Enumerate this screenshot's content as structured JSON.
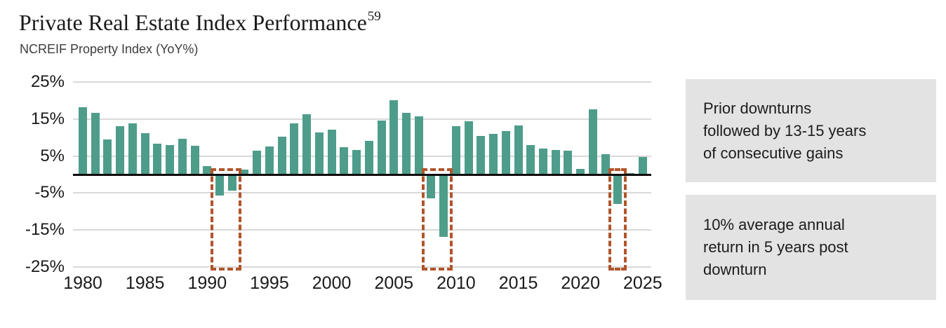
{
  "header": {
    "title": "Private Real Estate Index Performance",
    "footnote_marker": "59",
    "subtitle": "NCREIF Property Index (YoY%)"
  },
  "chart_data": {
    "type": "bar",
    "title": "Private Real Estate Index Performance",
    "subtitle": "NCREIF Property Index (YoY%)",
    "xlabel": "",
    "ylabel": "YoY %",
    "x": [
      1980,
      1981,
      1982,
      1983,
      1984,
      1985,
      1986,
      1987,
      1988,
      1989,
      1990,
      1991,
      1992,
      1993,
      1994,
      1995,
      1996,
      1997,
      1998,
      1999,
      2000,
      2001,
      2002,
      2003,
      2004,
      2005,
      2006,
      2007,
      2008,
      2009,
      2010,
      2011,
      2012,
      2013,
      2014,
      2015,
      2016,
      2017,
      2018,
      2019,
      2020,
      2021,
      2022,
      2023,
      2024,
      2025
    ],
    "values": [
      18.1,
      16.6,
      9.4,
      13.1,
      13.8,
      11.2,
      8.3,
      8.0,
      9.6,
      7.8,
      2.3,
      -5.6,
      -4.3,
      1.4,
      6.4,
      7.5,
      10.3,
      13.9,
      16.2,
      11.4,
      12.2,
      7.3,
      6.7,
      9.0,
      14.5,
      20.1,
      16.6,
      15.8,
      -6.5,
      -16.9,
      13.1,
      14.3,
      10.5,
      11.0,
      11.8,
      13.3,
      8.0,
      7.0,
      6.7,
      6.4,
      1.6,
      17.7,
      5.5,
      -7.9,
      0.4,
      4.7
    ],
    "ylim": [
      -25,
      25
    ],
    "yticks": [
      25,
      15,
      5,
      -5,
      -15,
      -25
    ],
    "ytick_labels": [
      "25%",
      "15%",
      "5%",
      "-5%",
      "-15%",
      "-25%"
    ],
    "xticks": [
      1980,
      1985,
      1990,
      1995,
      2000,
      2005,
      2010,
      2015,
      2020,
      2025
    ],
    "xtick_labels": [
      "1980",
      "1985",
      "1990",
      "1995",
      "2000",
      "2005",
      "2010",
      "2015",
      "2020",
      "2025"
    ],
    "grid": "horizontal gridlines on",
    "legend": "none",
    "bar_color": "#4E9D8B",
    "gridline_color": "#D9D9D9",
    "zero_line_color": "#0D0D0D",
    "highlight_color": "#B0552B",
    "highlight_boxes": [
      {
        "years": "1991-1992",
        "from_year": 1991,
        "to_year": 1992
      },
      {
        "years": "2008-2009",
        "from_year": 2008,
        "to_year": 2009
      },
      {
        "years": "2023",
        "from_year": 2023,
        "to_year": 2023
      }
    ]
  },
  "callouts": [
    {
      "background": "#E3E3E3",
      "lines": [
        "Prior downturns",
        "followed by 13-15 years",
        "of consecutive gains"
      ]
    },
    {
      "background": "#E3E3E3",
      "lines": [
        "10% average annual",
        "return in 5 years post",
        "downturn"
      ]
    }
  ]
}
